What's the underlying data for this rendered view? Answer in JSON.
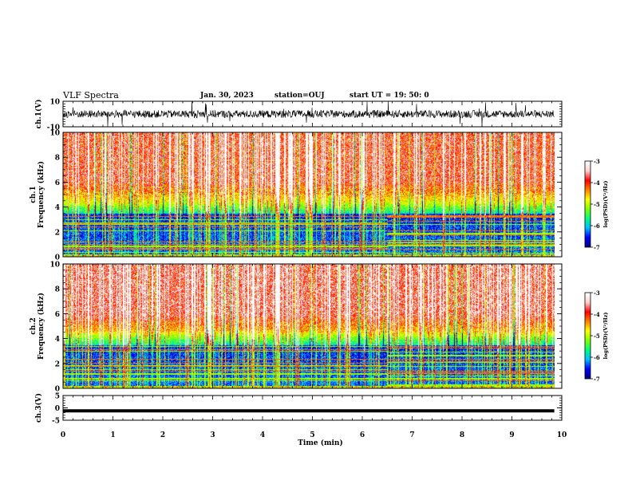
{
  "header": {
    "title": "VLF Spectra",
    "date": "Jan. 30, 2023",
    "station": "station=OUJ",
    "start": "start  UT =   19: 50: 0"
  },
  "chart_data": [
    {
      "type": "line",
      "panel": "ch1-waveform",
      "ylabel": "ch.1(V)",
      "ylim": [
        -10,
        10
      ],
      "yticks": [
        "10",
        "-10"
      ],
      "xlim": [
        0,
        10
      ],
      "baseline": 0,
      "color": "#000000"
    },
    {
      "type": "heatmap",
      "panel": "ch1-spectrogram",
      "ylabel": "ch.1\nFrequency (kHz)",
      "ylim": [
        0,
        10
      ],
      "yticks": [
        "0",
        "2",
        "4",
        "6",
        "8",
        "10"
      ],
      "xlim": [
        0,
        9.85
      ],
      "colorbar": {
        "label": "log(PSD)(V²/Hz)",
        "range": [
          -7,
          -3
        ],
        "ticks": [
          "-3",
          "-4",
          "-5",
          "-6",
          "-7"
        ],
        "colormap": [
          "#000080",
          "#0000ff",
          "#00c0ff",
          "#00ff80",
          "#80ff00",
          "#ffff00",
          "#ff8000",
          "#ff0000",
          "#ffd0d0",
          "#ffffff"
        ]
      }
    },
    {
      "type": "heatmap",
      "panel": "ch2-spectrogram",
      "ylabel": "ch.2\nFrequency (kHz)",
      "ylim": [
        0,
        10
      ],
      "yticks": [
        "0",
        "2",
        "4",
        "6",
        "8",
        "10"
      ],
      "xlim": [
        0,
        9.85
      ],
      "colorbar": {
        "label": "log(PSD)(V²/Hz)",
        "range": [
          -7,
          -3
        ],
        "ticks": [
          "-3",
          "-4",
          "-5",
          "-6",
          "-7"
        ],
        "colormap": [
          "#000080",
          "#0000ff",
          "#00c0ff",
          "#00ff80",
          "#80ff00",
          "#ffff00",
          "#ff8000",
          "#ff0000",
          "#ffd0d0",
          "#ffffff"
        ]
      }
    },
    {
      "type": "line",
      "panel": "ch3-waveform",
      "ylabel": "ch.3(V)",
      "ylim": [
        -5,
        5
      ],
      "yticks": [
        "5",
        "0",
        "-5"
      ],
      "xlim": [
        0,
        9.85
      ],
      "values_constant": -1.2,
      "color": "#000000"
    }
  ],
  "xaxis": {
    "label": "Time (min)",
    "range": [
      0,
      10
    ],
    "ticks": [
      "0",
      "1",
      "2",
      "3",
      "4",
      "5",
      "6",
      "7",
      "8",
      "9",
      "10"
    ]
  }
}
